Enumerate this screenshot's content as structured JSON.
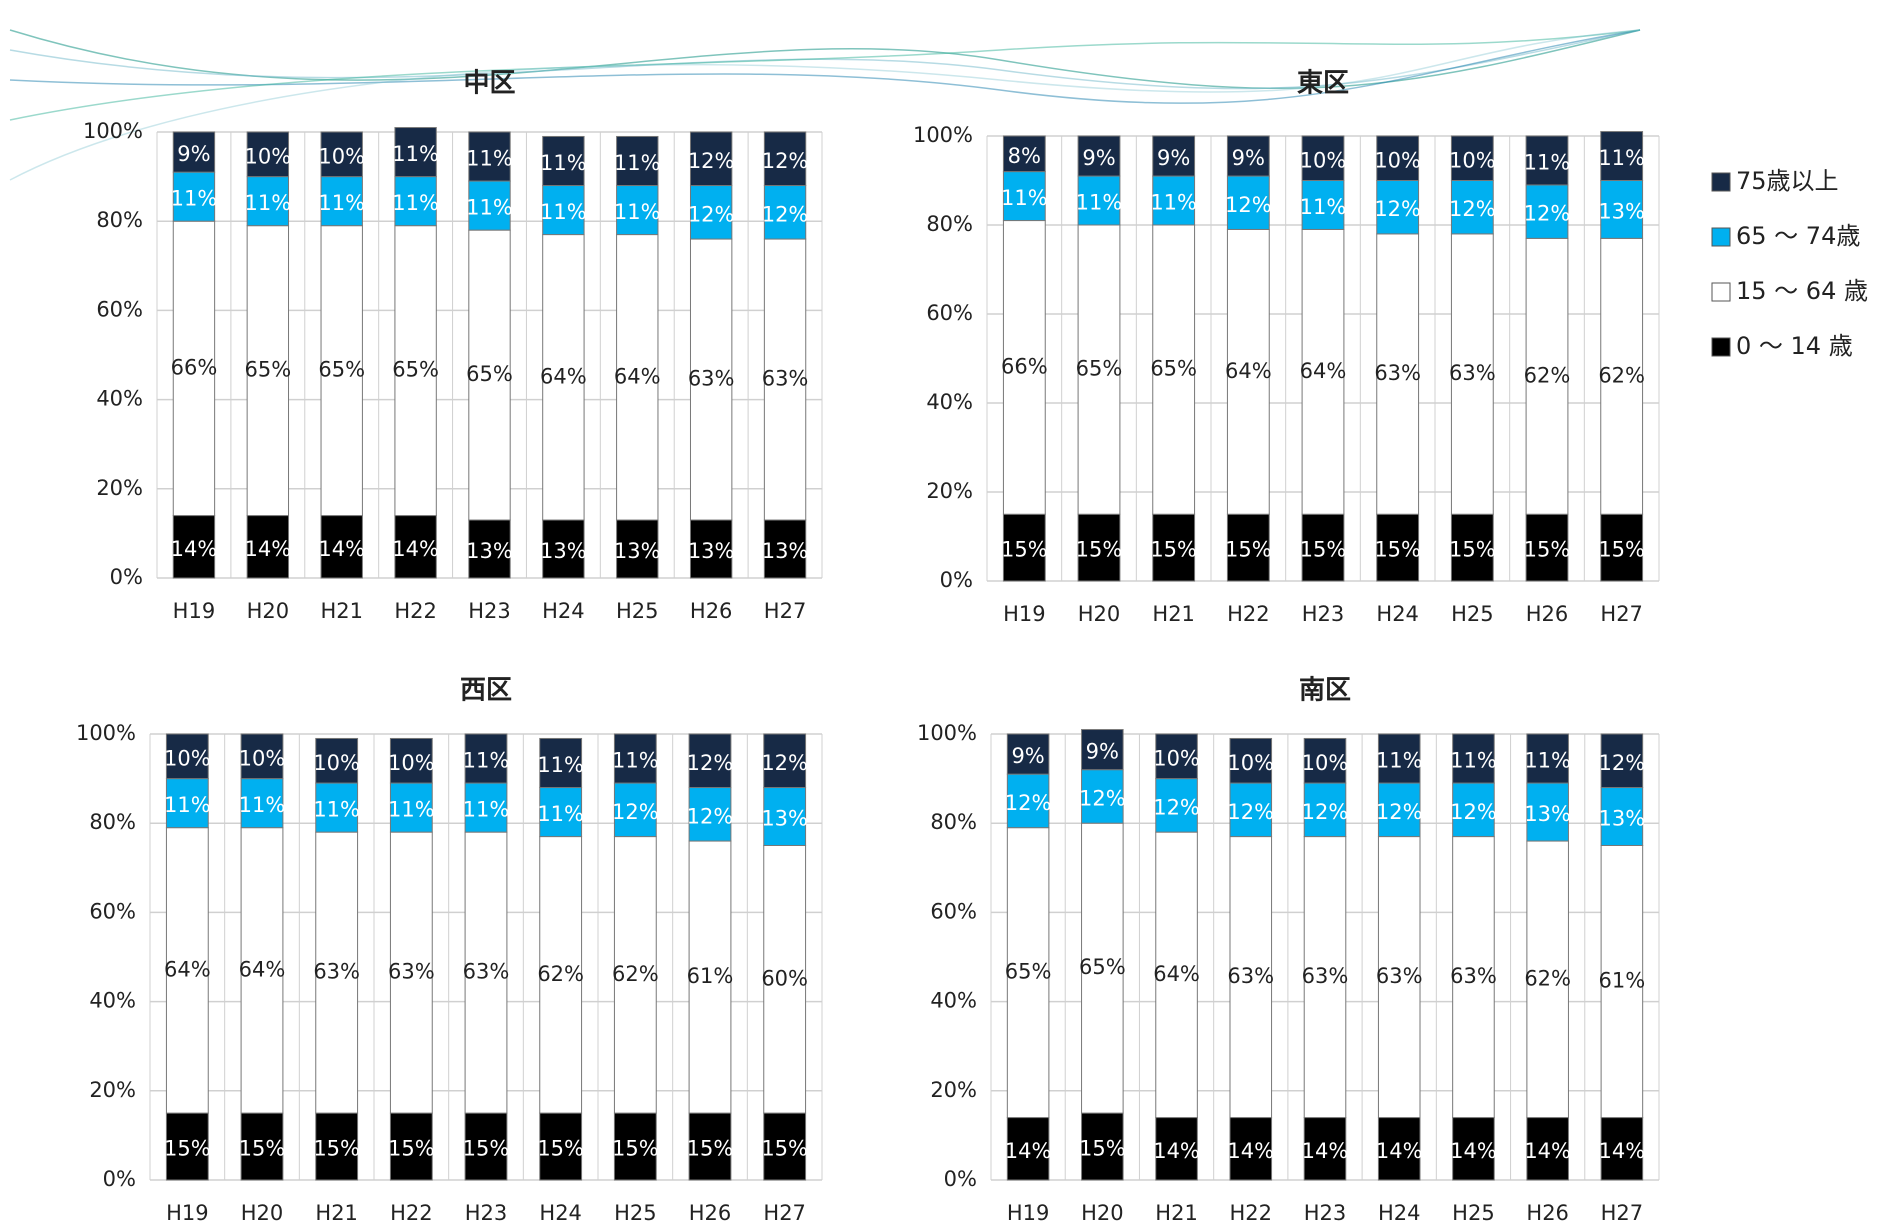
{
  "chart_data": [
    {
      "type": "bar",
      "stacked": true,
      "title": "中区",
      "categories": [
        "H19",
        "H20",
        "H21",
        "H22",
        "H23",
        "H24",
        "H25",
        "H26",
        "H27"
      ],
      "series": [
        {
          "name": "0 〜 14 歳",
          "color": "#000000",
          "values": [
            14,
            14,
            14,
            14,
            13,
            13,
            13,
            13,
            13
          ],
          "value_labels": [
            "14%",
            "14%",
            "14%",
            "14%",
            "13%",
            "13%",
            "13%",
            "13%",
            "13%"
          ]
        },
        {
          "name": "15 〜 64 歳",
          "color": "#ffffff",
          "values": [
            66,
            65,
            65,
            65,
            65,
            64,
            64,
            63,
            63
          ],
          "value_labels": [
            "66%",
            "65%",
            "65%",
            "65%",
            "65%",
            "64%",
            "64%",
            "63%",
            "63%"
          ]
        },
        {
          "name": "65 〜 74歳",
          "color": "#00b0f0",
          "values": [
            11,
            11,
            11,
            11,
            11,
            11,
            11,
            12,
            12
          ],
          "value_labels": [
            "11%",
            "11%",
            "11%",
            "11%",
            "11%",
            "11%",
            "11%",
            "12%",
            "12%"
          ]
        },
        {
          "name": "75歳以上",
          "color": "#172a46",
          "values": [
            9,
            10,
            10,
            11,
            11,
            11,
            11,
            12,
            12
          ],
          "value_labels": [
            "9%",
            "10%",
            "10%",
            "11%",
            "11%",
            "11%",
            "11%",
            "12%",
            "12%"
          ]
        }
      ],
      "ylim": [
        0,
        100
      ],
      "yticks": [
        {
          "value": 0,
          "label": "0%"
        },
        {
          "value": 20,
          "label": "20%"
        },
        {
          "value": 40,
          "label": "40%"
        },
        {
          "value": 60,
          "label": "60%"
        },
        {
          "value": 80,
          "label": "80%"
        },
        {
          "value": 100,
          "label": "100%"
        }
      ],
      "grid": true,
      "legend": "right"
    },
    {
      "type": "bar",
      "stacked": true,
      "title": "東区",
      "categories": [
        "H19",
        "H20",
        "H21",
        "H22",
        "H23",
        "H24",
        "H25",
        "H26",
        "H27"
      ],
      "series": [
        {
          "name": "0 〜 14 歳",
          "color": "#000000",
          "values": [
            15,
            15,
            15,
            15,
            15,
            15,
            15,
            15,
            15
          ],
          "value_labels": [
            "15%",
            "15%",
            "15%",
            "15%",
            "15%",
            "15%",
            "15%",
            "15%",
            "15%"
          ]
        },
        {
          "name": "15 〜 64 歳",
          "color": "#ffffff",
          "values": [
            66,
            65,
            65,
            64,
            64,
            63,
            63,
            62,
            62
          ],
          "value_labels": [
            "66%",
            "65%",
            "65%",
            "64%",
            "64%",
            "63%",
            "63%",
            "62%",
            "62%"
          ]
        },
        {
          "name": "65 〜 74歳",
          "color": "#00b0f0",
          "values": [
            11,
            11,
            11,
            12,
            11,
            12,
            12,
            12,
            13
          ],
          "value_labels": [
            "11%",
            "11%",
            "11%",
            "12%",
            "11%",
            "12%",
            "12%",
            "12%",
            "13%"
          ]
        },
        {
          "name": "75歳以上",
          "color": "#172a46",
          "values": [
            8,
            9,
            9,
            9,
            10,
            10,
            10,
            11,
            11
          ],
          "value_labels": [
            "8%",
            "9%",
            "9%",
            "9%",
            "10%",
            "10%",
            "10%",
            "11%",
            "11%"
          ]
        }
      ],
      "ylim": [
        0,
        100
      ],
      "yticks": [
        {
          "value": 0,
          "label": "0%"
        },
        {
          "value": 20,
          "label": "20%"
        },
        {
          "value": 40,
          "label": "40%"
        },
        {
          "value": 60,
          "label": "60%"
        },
        {
          "value": 80,
          "label": "80%"
        },
        {
          "value": 100,
          "label": "100%"
        }
      ],
      "grid": true
    },
    {
      "type": "bar",
      "stacked": true,
      "title": "西区",
      "categories": [
        "H19",
        "H20",
        "H21",
        "H22",
        "H23",
        "H24",
        "H25",
        "H26",
        "H27"
      ],
      "series": [
        {
          "name": "0 〜 14 歳",
          "color": "#000000",
          "values": [
            15,
            15,
            15,
            15,
            15,
            15,
            15,
            15,
            15
          ],
          "value_labels": [
            "15%",
            "15%",
            "15%",
            "15%",
            "15%",
            "15%",
            "15%",
            "15%",
            "15%"
          ]
        },
        {
          "name": "15 〜 64 歳",
          "color": "#ffffff",
          "values": [
            64,
            64,
            63,
            63,
            63,
            62,
            62,
            61,
            60
          ],
          "value_labels": [
            "64%",
            "64%",
            "63%",
            "63%",
            "63%",
            "62%",
            "62%",
            "61%",
            "60%"
          ]
        },
        {
          "name": "65 〜 74歳",
          "color": "#00b0f0",
          "values": [
            11,
            11,
            11,
            11,
            11,
            11,
            12,
            12,
            13
          ],
          "value_labels": [
            "11%",
            "11%",
            "11%",
            "11%",
            "11%",
            "11%",
            "12%",
            "12%",
            "13%"
          ]
        },
        {
          "name": "75歳以上",
          "color": "#172a46",
          "values": [
            10,
            10,
            10,
            10,
            11,
            11,
            11,
            12,
            12
          ],
          "value_labels": [
            "10%",
            "10%",
            "10%",
            "10%",
            "11%",
            "11%",
            "11%",
            "12%",
            "12%"
          ]
        }
      ],
      "ylim": [
        0,
        100
      ],
      "yticks": [
        {
          "value": 0,
          "label": "0%"
        },
        {
          "value": 20,
          "label": "20%"
        },
        {
          "value": 40,
          "label": "40%"
        },
        {
          "value": 60,
          "label": "60%"
        },
        {
          "value": 80,
          "label": "80%"
        },
        {
          "value": 100,
          "label": "100%"
        }
      ],
      "grid": true
    },
    {
      "type": "bar",
      "stacked": true,
      "title": "南区",
      "categories": [
        "H19",
        "H20",
        "H21",
        "H22",
        "H23",
        "H24",
        "H25",
        "H26",
        "H27"
      ],
      "series": [
        {
          "name": "0 〜 14 歳",
          "color": "#000000",
          "values": [
            14,
            15,
            14,
            14,
            14,
            14,
            14,
            14,
            14
          ],
          "value_labels": [
            "14%",
            "15%",
            "14%",
            "14%",
            "14%",
            "14%",
            "14%",
            "14%",
            "14%"
          ]
        },
        {
          "name": "15 〜 64 歳",
          "color": "#ffffff",
          "values": [
            65,
            65,
            64,
            63,
            63,
            63,
            63,
            62,
            61
          ],
          "value_labels": [
            "65%",
            "65%",
            "64%",
            "63%",
            "63%",
            "63%",
            "63%",
            "62%",
            "61%"
          ]
        },
        {
          "name": "65 〜 74歳",
          "color": "#00b0f0",
          "values": [
            12,
            12,
            12,
            12,
            12,
            12,
            12,
            13,
            13
          ],
          "value_labels": [
            "12%",
            "12%",
            "12%",
            "12%",
            "12%",
            "12%",
            "12%",
            "13%",
            "13%"
          ]
        },
        {
          "name": "75歳以上",
          "color": "#172a46",
          "values": [
            9,
            9,
            10,
            10,
            10,
            11,
            11,
            11,
            12
          ],
          "value_labels": [
            "9%",
            "9%",
            "10%",
            "10%",
            "10%",
            "11%",
            "11%",
            "11%",
            "12%"
          ]
        }
      ],
      "ylim": [
        0,
        100
      ],
      "yticks": [
        {
          "value": 0,
          "label": "0%"
        },
        {
          "value": 20,
          "label": "20%"
        },
        {
          "value": 40,
          "label": "40%"
        },
        {
          "value": 60,
          "label": "60%"
        },
        {
          "value": 80,
          "label": "80%"
        },
        {
          "value": 100,
          "label": "100%"
        }
      ],
      "grid": true
    }
  ]
}
